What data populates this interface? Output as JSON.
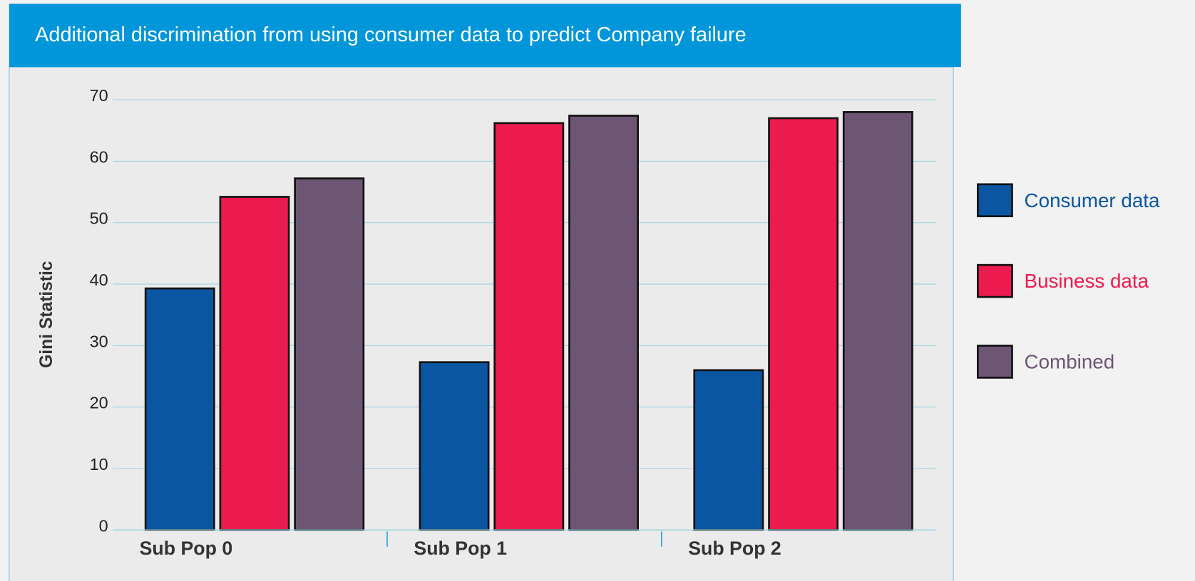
{
  "chart_data": {
    "type": "bar",
    "title": "Additional discrimination from using consumer data to predict Company failure",
    "y_label": "Gini Statistic",
    "categories": [
      "Sub Pop 0",
      "Sub Pop 1",
      "Sub Pop 2"
    ],
    "series": [
      {
        "name": "Consumer data",
        "color": "#0a56a3",
        "values": [
          39.3,
          27.3,
          26.0
        ]
      },
      {
        "name": "Business data",
        "color": "#ec1b4f",
        "values": [
          54.2,
          66.2,
          67.0
        ]
      },
      {
        "name": "Combined",
        "color": "#6d5574",
        "values": [
          57.2,
          67.4,
          68.0
        ]
      }
    ],
    "ylim": [
      0,
      70
    ],
    "yticks": [
      0,
      10,
      20,
      30,
      40,
      50,
      60,
      70
    ],
    "grid": true,
    "legend": "right"
  }
}
